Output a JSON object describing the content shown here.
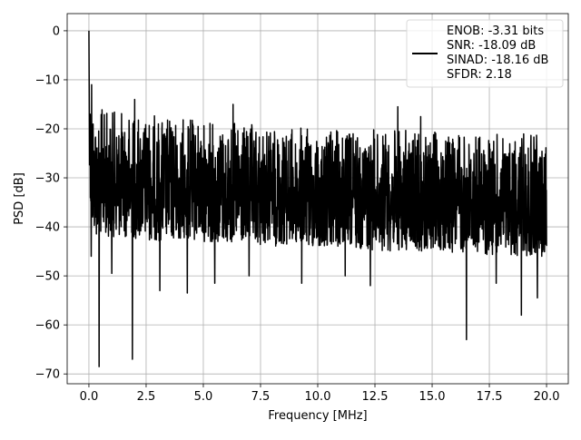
{
  "chart_data": {
    "type": "line",
    "title": "",
    "xlabel": "Frequency [MHz]",
    "ylabel": "PSD [dB]",
    "xlim": [
      -0.95,
      20.95
    ],
    "ylim": [
      -72.0,
      3.5
    ],
    "xticks": [
      0.0,
      2.5,
      5.0,
      7.5,
      10.0,
      12.5,
      15.0,
      17.5,
      20.0
    ],
    "xtick_labels": [
      "0.0",
      "2.5",
      "5.0",
      "7.5",
      "10.0",
      "12.5",
      "15.0",
      "17.5",
      "20.0"
    ],
    "yticks": [
      0,
      -10,
      -20,
      -30,
      -40,
      -50,
      -60,
      -70
    ],
    "ytick_labels": [
      "0",
      "−10",
      "−20",
      "−30",
      "−40",
      "−50",
      "−60",
      "−70"
    ],
    "grid": true,
    "legend_position": "top-right",
    "series": [
      {
        "name": "ENOB: -3.31 bits\nSNR: -18.09 dB\nSINAD: -18.16 dB\nSFDR: 2.18",
        "legend_lines": [
          "ENOB: -3.31 bits",
          "SNR: -18.09 dB",
          "SINAD: -18.16 dB",
          "SFDR: 2.18"
        ],
        "color": "#000000",
        "envelope": {
          "x": [
            0.0,
            0.02,
            0.05,
            0.1,
            0.2,
            0.3,
            0.5,
            1.0,
            2.0,
            3.0,
            4.0,
            5.0,
            6.0,
            7.0,
            8.0,
            9.0,
            10.0,
            11.0,
            12.0,
            13.0,
            14.0,
            15.0,
            16.0,
            17.0,
            18.0,
            19.0,
            20.0
          ],
          "upper": [
            0.0,
            -5.0,
            -10.0,
            -13.0,
            -14.0,
            -15.0,
            -15.5,
            -16.0,
            -16.5,
            -17.0,
            -17.5,
            -18.0,
            -18.5,
            -19.0,
            -19.5,
            -19.5,
            -20.0,
            -20.0,
            -20.0,
            -20.0,
            -20.0,
            -20.5,
            -20.5,
            -20.5,
            -21.0,
            -21.0,
            -21.0
          ],
          "lower": [
            -12.0,
            -25.0,
            -35.0,
            -40.0,
            -41.0,
            -42.0,
            -42.0,
            -42.0,
            -42.5,
            -43.0,
            -43.0,
            -43.0,
            -43.5,
            -44.0,
            -44.0,
            -44.0,
            -44.5,
            -44.5,
            -44.5,
            -45.0,
            -45.0,
            -45.0,
            -45.5,
            -45.5,
            -46.0,
            -46.0,
            -46.0
          ]
        },
        "peaks": [
          {
            "x": 0.0,
            "y": 0.0
          },
          {
            "x": 0.12,
            "y": -11.0
          },
          {
            "x": 2.0,
            "y": -14.0
          },
          {
            "x": 6.3,
            "y": -15.0
          },
          {
            "x": 13.5,
            "y": -15.5
          },
          {
            "x": 14.5,
            "y": -17.5
          }
        ],
        "dips": [
          {
            "x": 0.1,
            "y": -46.0
          },
          {
            "x": 0.45,
            "y": -68.5
          },
          {
            "x": 1.0,
            "y": -49.5
          },
          {
            "x": 1.9,
            "y": -67.0
          },
          {
            "x": 3.1,
            "y": -53.0
          },
          {
            "x": 4.3,
            "y": -53.5
          },
          {
            "x": 5.5,
            "y": -51.5
          },
          {
            "x": 7.0,
            "y": -50.0
          },
          {
            "x": 9.3,
            "y": -51.5
          },
          {
            "x": 11.2,
            "y": -50.0
          },
          {
            "x": 12.3,
            "y": -52.0
          },
          {
            "x": 16.5,
            "y": -63.0
          },
          {
            "x": 17.8,
            "y": -51.5
          },
          {
            "x": 18.9,
            "y": -58.0
          },
          {
            "x": 19.6,
            "y": -54.5
          }
        ]
      }
    ]
  }
}
